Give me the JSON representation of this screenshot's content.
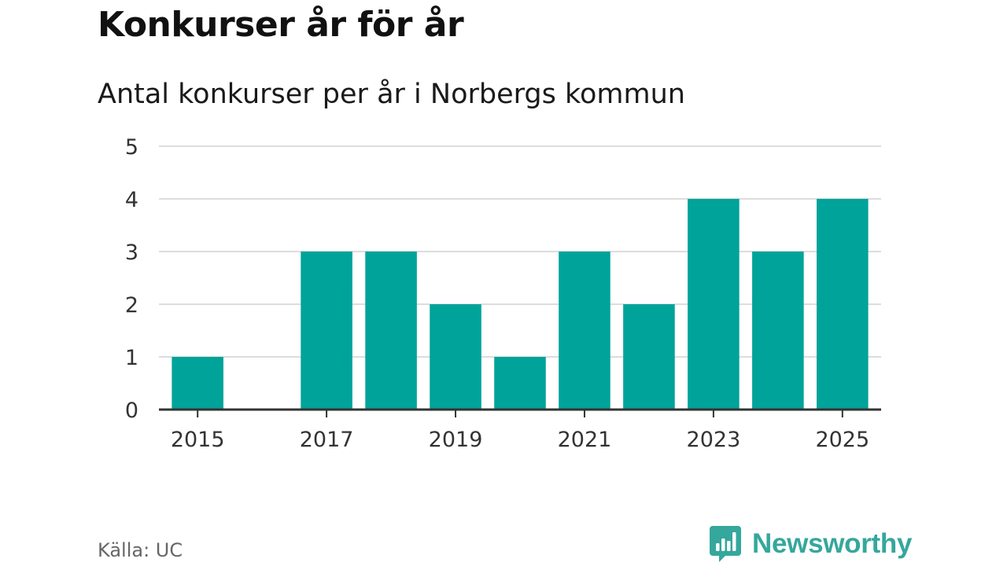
{
  "header": {
    "title": "Konkurser år för år",
    "subtitle": "Antal konkurser per år i Norbergs kommun"
  },
  "footer": {
    "source": "Källa: UC",
    "brand_name": "Newsworthy",
    "brand_icon": "bar-chart-speech-bubble-icon"
  },
  "colors": {
    "bar": "#00a39a",
    "grid": "#dddddd",
    "axis": "#333333",
    "brand": "#35a79c"
  },
  "chart_data": {
    "type": "bar",
    "title": "Konkurser år för år",
    "subtitle": "Antal konkurser per år i Norbergs kommun",
    "categories": [
      2015,
      2016,
      2017,
      2018,
      2019,
      2020,
      2021,
      2022,
      2023,
      2024,
      2025
    ],
    "values": [
      1,
      0,
      3,
      3,
      2,
      1,
      3,
      2,
      4,
      3,
      4
    ],
    "x_tick_labels": [
      "2015",
      "2017",
      "2019",
      "2021",
      "2023",
      "2025"
    ],
    "y_ticks": [
      0,
      1,
      2,
      3,
      4,
      5
    ],
    "ylim": [
      0,
      5
    ],
    "xlabel": "",
    "ylabel": "",
    "grid": true,
    "legend": false
  }
}
